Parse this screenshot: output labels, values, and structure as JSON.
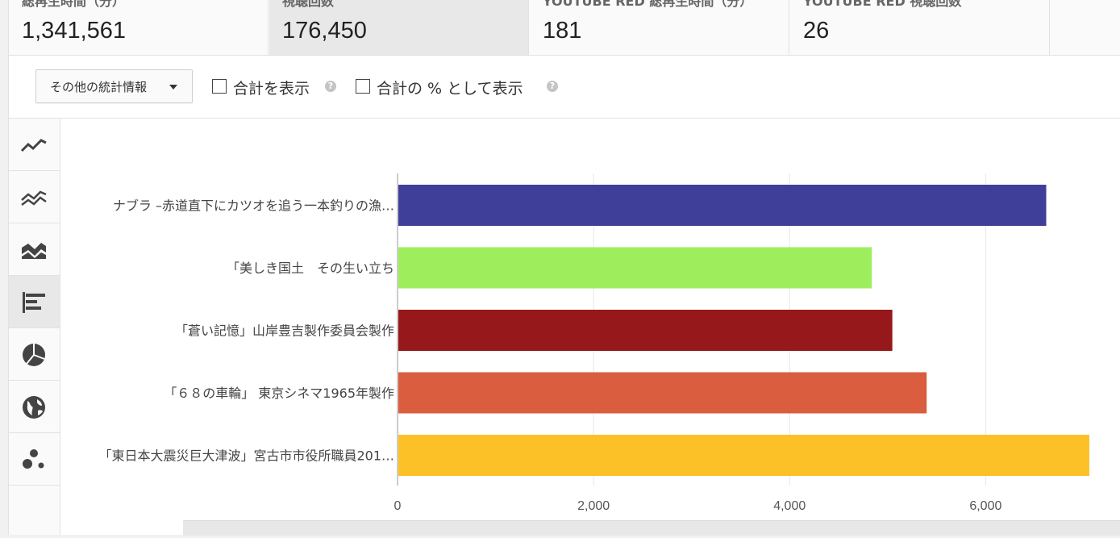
{
  "metrics": [
    {
      "label": "総再生時間（分）",
      "value": "1,341,561"
    },
    {
      "label": "視聴回数",
      "value": "176,450"
    },
    {
      "label": "YOUTUBE RED 総再生時間（分）",
      "value": "181"
    },
    {
      "label": "YOUTUBE RED 視聴回数",
      "value": "26"
    }
  ],
  "options": {
    "dropdown_label": "その他の統計情報",
    "show_total_label": "合計を表示",
    "show_percent_label": "合計の % として表示",
    "help_glyph": "?"
  },
  "sidebar": {
    "items": [
      {
        "icon": "line-chart-icon"
      },
      {
        "icon": "multi-line-chart-icon"
      },
      {
        "icon": "stacked-area-chart-icon"
      },
      {
        "icon": "bar-chart-icon",
        "active": true
      },
      {
        "icon": "pie-chart-icon"
      },
      {
        "icon": "globe-icon"
      },
      {
        "icon": "bubble-chart-icon"
      }
    ]
  },
  "chart_data": {
    "type": "bar",
    "orientation": "horizontal",
    "categories": [
      "ナブラ –赤道直下にカツオを追う一本釣りの漁…",
      "「美しき国土　その生い立ち",
      "「蒼い記憶」山岸豊吉製作委員会製作",
      "「６８の車輪」 東京シネマ1965年製作",
      "「東日本大震災巨大津波」宮古市市役所職員201…"
    ],
    "values": [
      6610,
      4830,
      5040,
      5390,
      7050
    ],
    "colors": [
      "#3f3f99",
      "#9ded5d",
      "#97181b",
      "#d95d3e",
      "#fbc126"
    ],
    "xticks": [
      0,
      2000,
      4000,
      6000
    ],
    "xtick_labels": [
      "0",
      "2,000",
      "4,000",
      "6,000"
    ],
    "xlim": [
      0,
      7050
    ],
    "grid": true
  }
}
